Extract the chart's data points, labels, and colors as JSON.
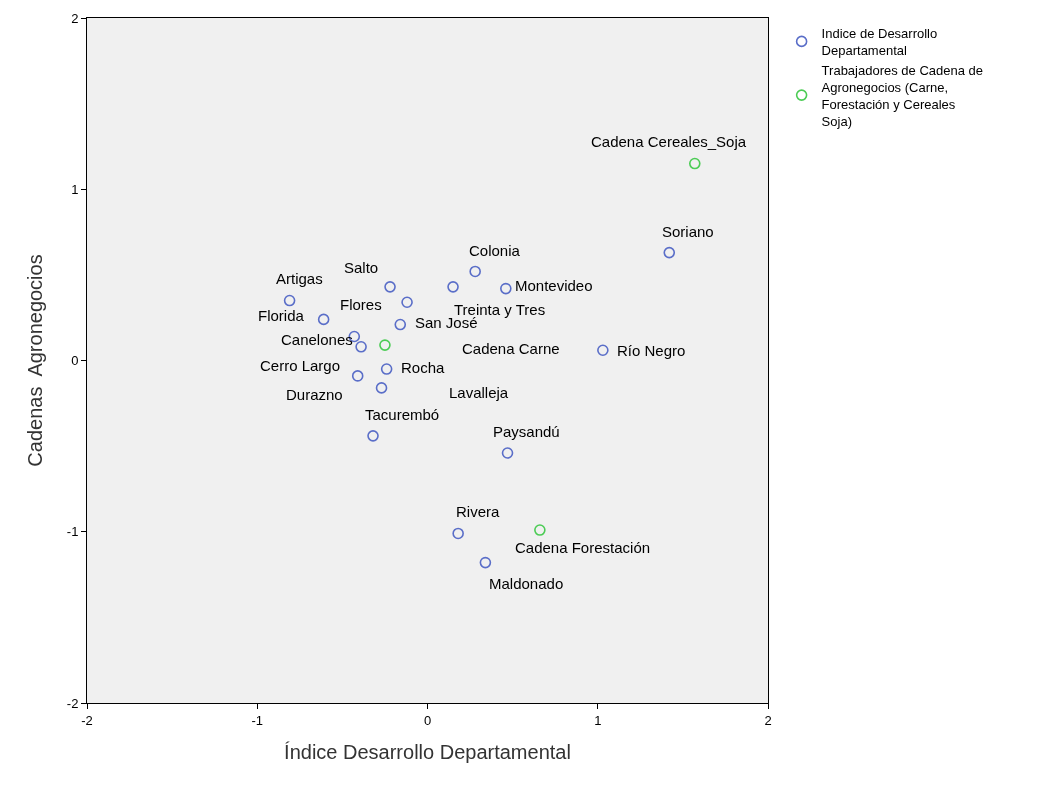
{
  "chart_data": {
    "type": "scatter",
    "xlabel": "Índice Desarrollo Departamental",
    "ylabel": "Cadenas  Agronegocios",
    "xlim": [
      -2,
      2
    ],
    "ylim": [
      -2,
      2
    ],
    "xticks": [
      -2,
      -1,
      0,
      1,
      2
    ],
    "yticks": [
      -2,
      -1,
      0,
      1,
      2
    ],
    "grid": false,
    "legend": "top right",
    "marker": "circle",
    "series": [
      {
        "name": "Indice de Desarrollo Departamental",
        "color": "#5a6ec8",
        "x": [
          -0.81,
          -0.61,
          -0.22,
          -0.12,
          -0.16,
          -0.43,
          -0.39,
          -0.24,
          -0.41,
          -0.27,
          -0.32,
          0.28,
          0.15,
          0.46,
          0.47,
          0.18,
          0.34,
          1.42,
          1.03
        ],
        "values": [
          0.35,
          0.24,
          0.43,
          0.34,
          0.21,
          0.14,
          0.08,
          -0.05,
          -0.09,
          -0.16,
          -0.44,
          0.52,
          0.43,
          0.42,
          -0.54,
          -1.01,
          -1.18,
          0.63,
          0.06
        ]
      },
      {
        "name": "Trabajadores de Cadena de Agronegocios (Carne, Forestación y Cereales  Soja)",
        "color": "#4ccc55",
        "x": [
          -0.25,
          0.66,
          1.57
        ],
        "values": [
          0.09,
          -0.99,
          1.15
        ]
      }
    ],
    "annotations": [
      {
        "text": "Cadena Cereales_Soja",
        "x": 1.57,
        "y": 1.15
      },
      {
        "text": "Soriano",
        "x": 1.42,
        "y": 0.63
      },
      {
        "text": "Colonia",
        "x": 0.28,
        "y": 0.52
      },
      {
        "text": "Salto",
        "x": -0.22,
        "y": 0.43
      },
      {
        "text": "Artigas",
        "x": -0.81,
        "y": 0.35
      },
      {
        "text": "Montevideo",
        "x": 0.46,
        "y": 0.42
      },
      {
        "text": "Flores",
        "x": -0.12,
        "y": 0.34
      },
      "Florida",
      "Treinta y Tres",
      {
        "text": "San José",
        "x": -0.16,
        "y": 0.21
      },
      {
        "text": "Canelones",
        "x": -0.43,
        "y": 0.14
      },
      "Cadena Carne",
      {
        "text": "Río Negro",
        "x": 1.03,
        "y": 0.06
      },
      {
        "text": "Cerro Largo",
        "x": -0.39,
        "y": 0.08
      },
      {
        "text": "Rocha",
        "x": -0.24,
        "y": -0.05
      },
      {
        "text": "Durazno",
        "x": -0.41,
        "y": -0.09
      },
      "Lavalleja",
      {
        "text": "Tacurembó",
        "x": -0.32,
        "y": -0.44
      },
      {
        "text": "Paysandú",
        "x": 0.47,
        "y": -0.54
      },
      {
        "text": "Rivera",
        "x": 0.18,
        "y": -1.01
      },
      {
        "text": "Cadena Forestación",
        "x": 0.66,
        "y": -0.99
      },
      {
        "text": "Maldonado",
        "x": 0.34,
        "y": -1.18
      }
    ]
  }
}
